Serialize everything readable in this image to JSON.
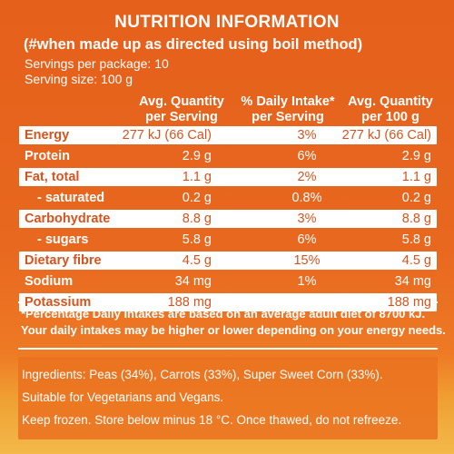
{
  "header": {
    "title": "NUTRITION INFORMATION",
    "subtitle": "(#when made up as directed using boil method)"
  },
  "servings": {
    "per_package": "Servings per package: 10",
    "serving_size": "Serving size: 100 g"
  },
  "table": {
    "columns": [
      [
        "Avg. Quantity",
        "per Serving"
      ],
      [
        "% Daily Intake*",
        "per Serving"
      ],
      [
        "Avg. Quantity",
        "per 100 g"
      ]
    ],
    "rows": [
      {
        "name": "Energy",
        "per_serving": "277 kJ (66 Cal)",
        "daily_intake": "3%",
        "per_100g": "277 kJ (66 Cal)"
      },
      {
        "name": "Protein",
        "per_serving": "2.9 g",
        "daily_intake": "6%",
        "per_100g": "2.9 g"
      },
      {
        "name": "Fat, total",
        "per_serving": "1.1 g",
        "daily_intake": "2%",
        "per_100g": "1.1 g"
      },
      {
        "name": "- saturated",
        "per_serving": "0.2 g",
        "daily_intake": "0.8%",
        "per_100g": "0.2 g"
      },
      {
        "name": "Carbohydrate",
        "per_serving": "8.8 g",
        "daily_intake": "3%",
        "per_100g": "8.8 g"
      },
      {
        "name": "- sugars",
        "per_serving": "5.8 g",
        "daily_intake": "6%",
        "per_100g": "5.8 g"
      },
      {
        "name": "Dietary fibre",
        "per_serving": "4.5 g",
        "daily_intake": "15%",
        "per_100g": "4.5 g"
      },
      {
        "name": "Sodium",
        "per_serving": "34 mg",
        "daily_intake": "1%",
        "per_100g": "34 mg"
      },
      {
        "name": "Potassium",
        "per_serving": "188 mg",
        "daily_intake": "",
        "per_100g": "188 mg"
      }
    ]
  },
  "footnote": {
    "line1": "*Percentage Daily Intakes are based on an average adult diet of 8700 kJ.",
    "line2": "Your daily intakes may be higher or lower depending on your energy needs."
  },
  "ingredients": {
    "line1": "Ingredients: Peas (34%), Carrots (33%), Super Sweet Corn (33%).",
    "line2": "Suitable for Vegetarians and Vegans.",
    "line3": "Keep frozen. Store below minus 18 °C. Once thawed, do not refreeze."
  },
  "colors": {
    "panel": "#e8661f",
    "text": "#ffffff",
    "row_text": "#d8531b"
  }
}
